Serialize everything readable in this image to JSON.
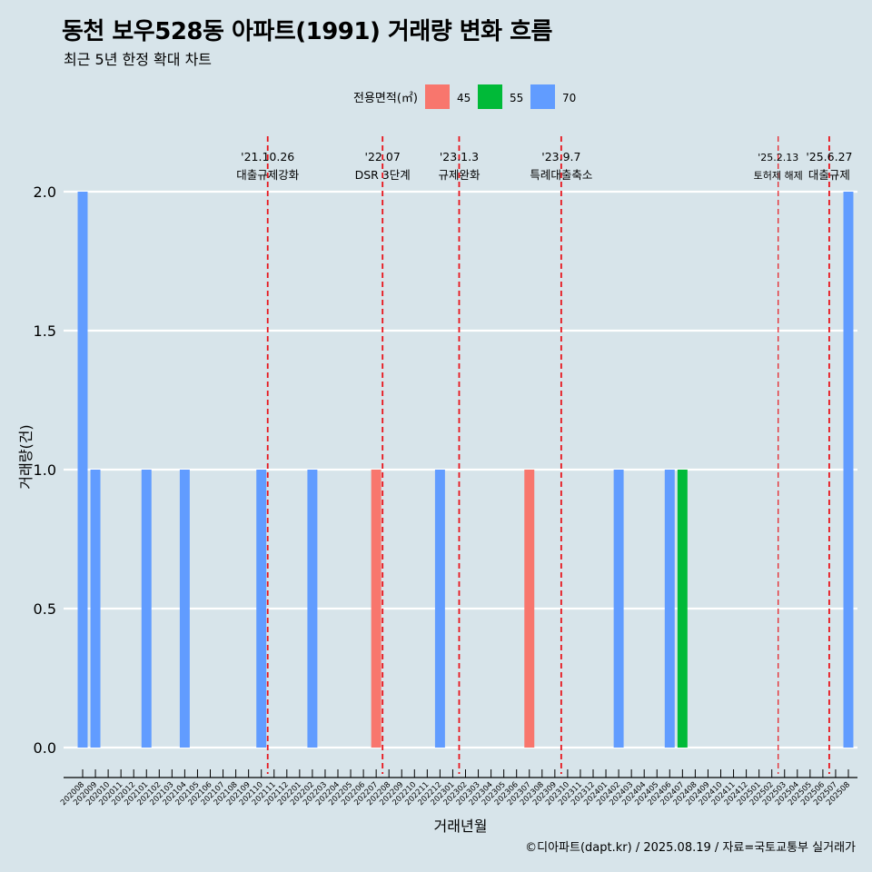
{
  "title": "동천 보우528동 아파트(1991) 거래량 변화 흐름",
  "subtitle": "최근 5년 한정 확대 차트",
  "caption": "©디아파트(dapt.kr) / 2025.08.19 / 자료=국토교통부 실거래가",
  "colors": {
    "background": "#d7e4ea",
    "grid": "#ffffff",
    "event_line": "#e8141b",
    "series_45": "#f8766d",
    "series_55": "#00ba38",
    "series_70": "#619cff"
  },
  "chart_data": {
    "type": "bar",
    "xlabel": "거래년월",
    "ylabel": "거래량(건)",
    "ylim": [
      0,
      2.0
    ],
    "yticks": [
      "0.0",
      "0.5",
      "1.0",
      "1.5",
      "2.0"
    ],
    "grid": true,
    "legend": {
      "title": "전용면적(㎡)",
      "placement": "top",
      "items": [
        {
          "label": "45",
          "color": "#f8766d"
        },
        {
          "label": "55",
          "color": "#00ba38"
        },
        {
          "label": "70",
          "color": "#619cff"
        }
      ]
    },
    "categories": [
      "202008",
      "202009",
      "202010",
      "202011",
      "202012",
      "202101",
      "202102",
      "202103",
      "202104",
      "202105",
      "202106",
      "202107",
      "202108",
      "202109",
      "202110",
      "202111",
      "202112",
      "202201",
      "202202",
      "202203",
      "202204",
      "202205",
      "202206",
      "202207",
      "202208",
      "202209",
      "202210",
      "202211",
      "202212",
      "202301",
      "202302",
      "202303",
      "202304",
      "202305",
      "202306",
      "202307",
      "202308",
      "202309",
      "202310",
      "202311",
      "202312",
      "202401",
      "202402",
      "202403",
      "202404",
      "202405",
      "202406",
      "202407",
      "202408",
      "202409",
      "202410",
      "202411",
      "202412",
      "202501",
      "202502",
      "202503",
      "202504",
      "202505",
      "202506",
      "202507",
      "202508"
    ],
    "series": [
      {
        "name": "45",
        "color": "#f8766d",
        "points": [
          {
            "x": "202207",
            "y": 1
          },
          {
            "x": "202307",
            "y": 1
          }
        ]
      },
      {
        "name": "55",
        "color": "#00ba38",
        "points": [
          {
            "x": "202407",
            "y": 1
          }
        ]
      },
      {
        "name": "70",
        "color": "#619cff",
        "points": [
          {
            "x": "202008",
            "y": 2
          },
          {
            "x": "202009",
            "y": 1
          },
          {
            "x": "202101",
            "y": 1
          },
          {
            "x": "202104",
            "y": 1
          },
          {
            "x": "202110",
            "y": 1
          },
          {
            "x": "202202",
            "y": 1
          },
          {
            "x": "202212",
            "y": 1
          },
          {
            "x": "202402",
            "y": 1
          },
          {
            "x": "202406",
            "y": 1
          },
          {
            "x": "202508",
            "y": 2
          }
        ]
      }
    ],
    "events": [
      {
        "date": "'21.10.26",
        "label": "대출규제강화",
        "position": 14.5
      },
      {
        "date": "'22.07",
        "label": "DSR 3단계",
        "position": 23.5
      },
      {
        "date": "'23.1.3",
        "label": "규제완화",
        "position": 29.5
      },
      {
        "date": "'23.9.7",
        "label": "특례대출축소",
        "position": 37.5
      },
      {
        "date": "'25.2.13",
        "label": "토허제 해제",
        "position": 54.5
      },
      {
        "date": "'25.6.27",
        "label": "대출규제",
        "position": 58.5
      }
    ]
  }
}
